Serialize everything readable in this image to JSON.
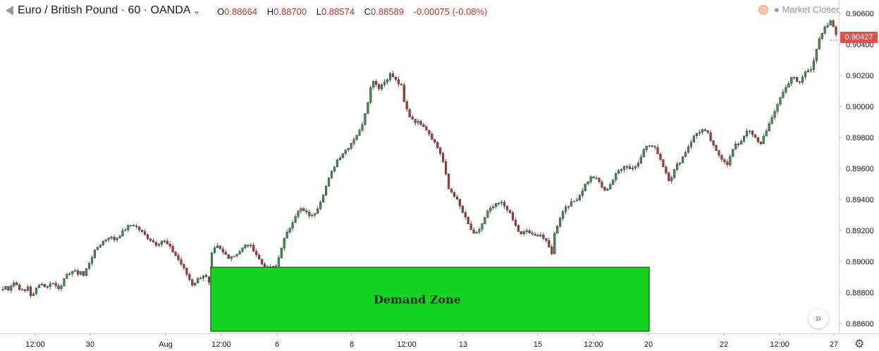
{
  "header": {
    "symbol": "Euro / British Pound · 60 · OANDA",
    "ohlc": [
      {
        "label": "O",
        "value": "0.88664"
      },
      {
        "label": "H",
        "value": "0.88700"
      },
      {
        "label": "L",
        "value": "0.88574"
      },
      {
        "label": "C",
        "value": "0.88589"
      }
    ],
    "change": "-0.00075 (-0.08%)",
    "market_status": "Market Closed"
  },
  "colors": {
    "up": "#3f8f55",
    "down": "#b03a2e",
    "zone_fill": "#15d421",
    "zone_border": "#1f4f1f",
    "price_tag": "#d9534f",
    "axis_text": "#131722"
  },
  "chart_data": {
    "type": "candlestick",
    "title": "",
    "xlabel": "",
    "ylabel": "",
    "ylim": [
      0.8846,
      0.9062
    ],
    "y_ticks": [
      "0.90600",
      "0.90400",
      "0.90200",
      "0.90000",
      "0.89800",
      "0.89600",
      "0.89400",
      "0.89200",
      "0.89000",
      "0.88800",
      "0.88600"
    ],
    "x_ticks": [
      "12:00",
      "30",
      "Aug",
      "12:00",
      "6",
      "8",
      "12:00",
      "13",
      "15",
      "12:00",
      "20",
      "22",
      "12:00",
      "27"
    ],
    "last_price": "0.90427",
    "price_path": [
      [
        0.8881,
        0.8884,
        0.8882,
        0.8887,
        0.8885,
        0.8882,
        0.888,
        0.8884,
        0.8876,
        0.8882,
        0.8886,
        0.8885,
        0.8883,
        0.8887,
        0.8885,
        0.8883,
        0.8886,
        0.889,
        0.8893,
        0.8894,
        0.8892,
        0.8894,
        0.8889
      ],
      [
        0.8893,
        0.8902,
        0.8909,
        0.8913,
        0.8916,
        0.8914,
        0.8918,
        0.8922,
        0.8924,
        0.8921,
        0.8917,
        0.8914,
        0.8911,
        0.8914,
        0.891,
        0.8905,
        0.8899,
        0.8892,
        0.8885,
        0.8889,
        0.8892,
        0.8884
      ],
      [
        0.8903,
        0.891,
        0.8906,
        0.8903,
        0.8904,
        0.8907,
        0.8911,
        0.8909,
        0.8902,
        0.8896,
        0.8895,
        0.8897,
        0.8912,
        0.892,
        0.8929,
        0.8934,
        0.8931,
        0.8929,
        0.8936,
        0.8946,
        0.8956,
        0.8965,
        0.897,
        0.8974,
        0.898,
        0.8985,
        0.9,
        0.9018,
        0.9012,
        0.9016,
        0.9021,
        0.9016,
        0.9012
      ],
      [
        0.9005,
        0.8994,
        0.899,
        0.8989,
        0.8983,
        0.8976,
        0.8968,
        0.8947,
        0.8942,
        0.8933,
        0.8924,
        0.8916,
        0.8923,
        0.8932,
        0.8936,
        0.8938,
        0.8934,
        0.8925,
        0.8917,
        0.892,
        0.8916,
        0.8918,
        0.8912,
        0.8904
      ],
      [
        0.8915,
        0.8928,
        0.8936,
        0.8938,
        0.8942,
        0.895,
        0.8955,
        0.8952,
        0.8945,
        0.8951,
        0.8958,
        0.8962,
        0.896,
        0.8962,
        0.8973,
        0.8975,
        0.8972,
        0.8962,
        0.8952,
        0.8961,
        0.8967,
        0.8975,
        0.8982,
        0.8985,
        0.8982,
        0.8972,
        0.8967,
        0.8963,
        0.8974,
        0.8977,
        0.8985,
        0.8981,
        0.8975,
        0.8985,
        0.8993,
        0.9005,
        0.9012,
        0.902,
        0.9014,
        0.9022,
        0.9025,
        0.9041,
        0.905,
        0.9055,
        0.9045
      ]
    ],
    "demand_zone": {
      "label": "Demand Zone",
      "price_top": 0.88963,
      "price_bottom": 0.8855,
      "x_start": 0.2512,
      "x_end": 0.774
    }
  }
}
